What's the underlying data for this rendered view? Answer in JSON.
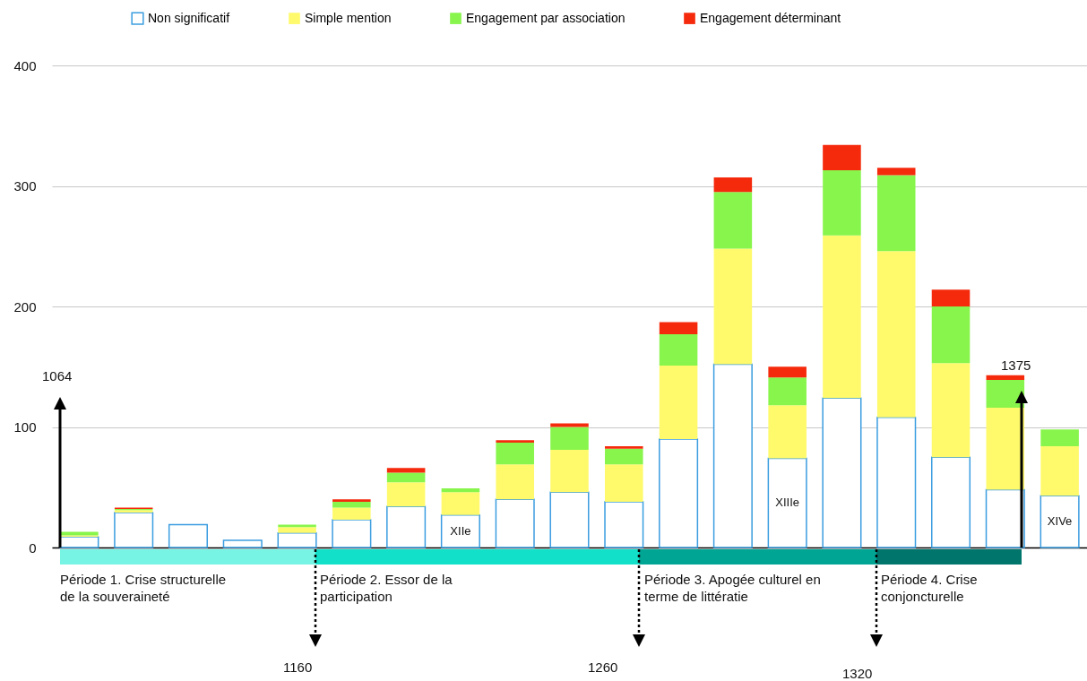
{
  "chart_data": {
    "type": "bar",
    "stacked": true,
    "categories": [
      null,
      null,
      null,
      null,
      null,
      null,
      null,
      null,
      null,
      null,
      null,
      null,
      null,
      null,
      null,
      null,
      null,
      null,
      null
    ],
    "series": [
      {
        "name": "Non significatif",
        "color": "#3b9de0",
        "values": [
          9,
          29,
          19,
          6,
          12,
          23,
          34,
          27,
          40,
          46,
          38,
          90,
          152,
          74,
          124,
          108,
          75,
          48,
          43
        ],
        "value_labels": [
          null,
          null,
          null,
          null,
          null,
          null,
          null,
          "XIIe",
          null,
          null,
          null,
          null,
          null,
          "XIIIe",
          null,
          null,
          null,
          null,
          "XIVe"
        ]
      },
      {
        "name": "Simple mention",
        "color": "#fffa6b",
        "values": [
          1,
          2,
          0,
          0,
          5,
          10,
          20,
          19,
          29,
          35,
          31,
          61,
          96,
          44,
          135,
          138,
          78,
          68,
          41
        ]
      },
      {
        "name": "Engagement par association",
        "color": "#88f54c",
        "values": [
          3,
          1,
          0,
          0,
          2,
          5,
          8,
          3,
          18,
          19,
          13,
          26,
          47,
          23,
          54,
          63,
          47,
          23,
          14
        ]
      },
      {
        "name": "Engagement déterminant",
        "color": "#f52a0c",
        "values": [
          0,
          1,
          0,
          0,
          0,
          2,
          4,
          0,
          2,
          3,
          2,
          10,
          12,
          9,
          21,
          6,
          14,
          4,
          0
        ]
      }
    ],
    "ylim": [
      0,
      400
    ],
    "yticks": [
      0,
      100,
      200,
      300,
      400
    ],
    "grid": "y",
    "legend": "top",
    "tick_labels": "y",
    "annotations": [
      "Période 1. Crise structurelle de la souveraineté",
      "Période 2. Essor de la participation",
      "Période 3. Apogée culturel en terme de littératie",
      "Période 4. Crise conjoncturelle",
      "1064",
      "1160",
      "1260",
      "1320",
      "1375"
    ]
  }
}
